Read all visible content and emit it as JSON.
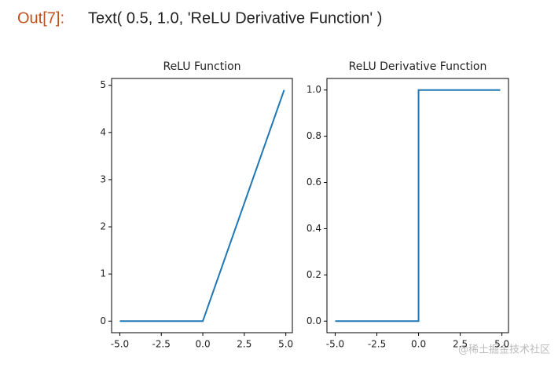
{
  "output": {
    "prompt": "Out[7]:",
    "text": "Text( 0.5, 1.0, 'ReLU Derivative Function' )"
  },
  "watermark": "@稀土掘金技术社区",
  "chart_data": [
    {
      "type": "line",
      "title": "ReLU Function",
      "x": [
        -5,
        0,
        4.9
      ],
      "series": [
        {
          "color": "#1f77b4",
          "values": [
            0,
            0,
            4.9
          ]
        }
      ],
      "xlim": [
        -5.495,
        5.395
      ],
      "ylim": [
        -0.245,
        5.145
      ],
      "xticks": [
        {
          "value": -5,
          "label": "-5.0"
        },
        {
          "value": -2.5,
          "label": "-2.5"
        },
        {
          "value": 0,
          "label": "0.0"
        },
        {
          "value": 2.5,
          "label": "2.5"
        },
        {
          "value": 5,
          "label": "5.0"
        }
      ],
      "yticks": [
        0,
        1,
        2,
        3,
        4,
        5
      ]
    },
    {
      "type": "line",
      "title": "ReLU Derivative Function",
      "x": [
        -5,
        0,
        0,
        4.9
      ],
      "series": [
        {
          "color": "#1f77b4",
          "values": [
            0,
            0,
            1,
            1
          ]
        }
      ],
      "xlim": [
        -5.495,
        5.395
      ],
      "ylim": [
        -0.05,
        1.05
      ],
      "xticks": [
        {
          "value": -5,
          "label": "-5.0"
        },
        {
          "value": -2.5,
          "label": "-2.5"
        },
        {
          "value": 0,
          "label": "0.0"
        },
        {
          "value": 2.5,
          "label": "2.5"
        },
        {
          "value": 5,
          "label": "5.0"
        }
      ],
      "yticks": [
        {
          "value": 0,
          "label": "0.0"
        },
        {
          "value": 0.2,
          "label": "0.2"
        },
        {
          "value": 0.4,
          "label": "0.4"
        },
        {
          "value": 0.6,
          "label": "0.6"
        },
        {
          "value": 0.8,
          "label": "0.8"
        },
        {
          "value": 1,
          "label": "1.0"
        }
      ]
    }
  ]
}
